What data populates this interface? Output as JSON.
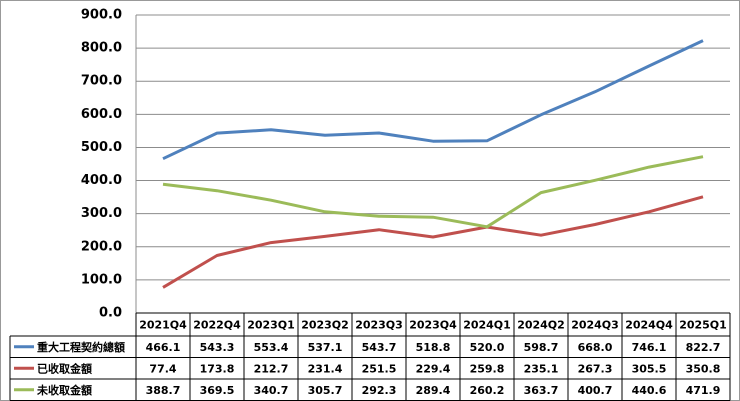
{
  "chart_data": {
    "type": "line",
    "categories": [
      "2021Q4",
      "2022Q4",
      "2023Q1",
      "2023Q2",
      "2023Q3",
      "2023Q4",
      "2024Q1",
      "2024Q2",
      "2024Q3",
      "2024Q4",
      "2025Q1"
    ],
    "series": [
      {
        "name": "重大工程契約總額",
        "color": "#4f81bd",
        "values": [
          466.1,
          543.3,
          553.4,
          537.1,
          543.7,
          518.8,
          520.0,
          598.7,
          668.0,
          746.1,
          822.7
        ],
        "value_labels": [
          "466.1",
          "543.3",
          "553.4",
          "537.1",
          "543.7",
          "518.8",
          "520.0",
          "598.7",
          "668.0",
          "746.1",
          "822.7"
        ]
      },
      {
        "name": "已收取金額",
        "color": "#c0504d",
        "values": [
          77.4,
          173.8,
          212.7,
          231.4,
          251.5,
          229.4,
          259.8,
          235.1,
          267.3,
          305.5,
          350.8
        ],
        "value_labels": [
          "77.4",
          "173.8",
          "212.7",
          "231.4",
          "251.5",
          "229.4",
          "259.8",
          "235.1",
          "267.3",
          "305.5",
          "350.8"
        ]
      },
      {
        "name": "未收取金額",
        "color": "#9bbb59",
        "values": [
          388.7,
          369.5,
          340.7,
          305.7,
          292.3,
          289.4,
          260.2,
          363.7,
          400.7,
          440.6,
          471.9
        ],
        "value_labels": [
          "388.7",
          "369.5",
          "340.7",
          "305.7",
          "292.3",
          "289.4",
          "260.2",
          "363.7",
          "400.7",
          "440.6",
          "471.9"
        ]
      }
    ],
    "ylim": [
      0,
      900
    ],
    "yticks": [
      {
        "value": 0,
        "label": "0.0"
      },
      {
        "value": 100,
        "label": "100.0"
      },
      {
        "value": 200,
        "label": "200.0"
      },
      {
        "value": 300,
        "label": "300.0"
      },
      {
        "value": 400,
        "label": "400.0"
      },
      {
        "value": 500,
        "label": "500.0"
      },
      {
        "value": 600,
        "label": "600.0"
      },
      {
        "value": 700,
        "label": "700.0"
      },
      {
        "value": 800,
        "label": "800.0"
      },
      {
        "value": 900,
        "label": "900.0"
      }
    ],
    "grid": true
  }
}
